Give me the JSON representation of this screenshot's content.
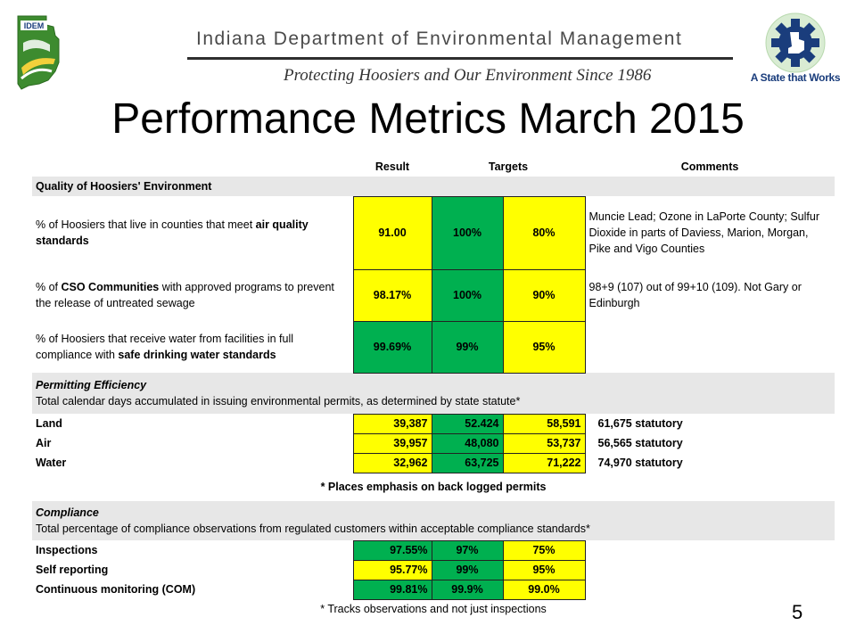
{
  "header": {
    "department": "Indiana Department of Environmental Management",
    "tagline": "Protecting Hoosiers and Our Environment Since 1986",
    "idem_logo_text": "IDEM",
    "state_logo_text": "A State that Works"
  },
  "title": "Performance Metrics March 2015",
  "table": {
    "columns": {
      "result": "Result",
      "targets": "Targets",
      "comments": "Comments"
    },
    "quality": {
      "section": "Quality of Hoosiers' Environment",
      "rows": [
        {
          "pre": "% of Hoosiers that live in counties that meet ",
          "bold": "air quality standards",
          "post": "",
          "result": "91.00",
          "target1": "100%",
          "target2": "80%",
          "comment": "Muncie Lead; Ozone in LaPorte County; Sulfur Dioxide in parts of Daviess, Marion, Morgan, Pike and Vigo Counties"
        },
        {
          "pre": "% of ",
          "bold": "CSO Communities",
          "post": " with approved programs to prevent the release of untreated sewage",
          "result": "98.17%",
          "target1": "100%",
          "target2": "90%",
          "comment": "98+9 (107) out of 99+10 (109).  Not Gary or Edinburgh"
        },
        {
          "pre": "% of Hoosiers that receive water from facilities in full compliance with ",
          "bold": "safe drinking water standards",
          "post": "",
          "result": "99.69%",
          "target1": "99%",
          "target2": "95%",
          "comment": ""
        }
      ]
    },
    "permitting": {
      "section_title": "Permitting Efficiency",
      "section_desc": "Total calendar days accumulated in issuing environmental permits, as determined by state statute*",
      "rows": [
        {
          "label": "Land",
          "result": "39,387",
          "target1": "52.424",
          "target2": "58,591",
          "comment": "61,675 statutory"
        },
        {
          "label": "Air",
          "result": "39,957",
          "target1": "48,080",
          "target2": "53,737",
          "comment": "56,565  statutory"
        },
        {
          "label": "Water",
          "result": "32,962",
          "target1": "63,725",
          "target2": "71,222",
          "comment": "74,970 statutory"
        }
      ],
      "footnote": "* Places emphasis on back logged permits"
    },
    "compliance": {
      "section_title": "Compliance",
      "section_desc": "Total percentage of compliance observations from regulated customers within acceptable compliance standards*",
      "rows": [
        {
          "label": "Inspections",
          "result": "97.55%",
          "target1": "97%",
          "target2": "75%"
        },
        {
          "label": "Self reporting",
          "result": "95.77%",
          "target1": "99%",
          "target2": "95%"
        },
        {
          "label": "Continuous monitoring (COM)",
          "result": "99.81%",
          "target1": "99.9%",
          "target2": "99.0%"
        }
      ],
      "footnote": "* Tracks observations and not just inspections"
    }
  },
  "page_number": "5",
  "colors": {
    "yellow": "#ffff00",
    "green": "#00b050",
    "section_grey": "#e7e7e7",
    "state_blue": "#1a3d7c",
    "idem_green": "#3d8b2f"
  }
}
